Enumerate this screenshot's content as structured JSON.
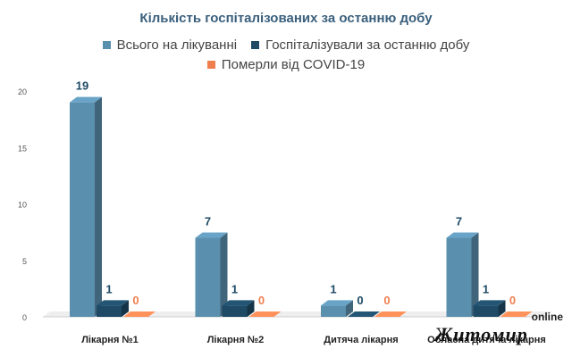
{
  "chart_data": {
    "type": "bar",
    "title": "Кількість госпіталізованих за останню добу",
    "categories": [
      "Лікарня №1",
      "Лікарня №2",
      "Дитяча лікарня",
      "Обласна дитяча лікарня"
    ],
    "series": [
      {
        "name": "Всього на лікуванні",
        "values": [
          19,
          7,
          1,
          7
        ],
        "color": "#5b8fae"
      },
      {
        "name": "Госпіталізували за останню добу",
        "values": [
          1,
          1,
          0,
          1
        ],
        "color": "#1e4a66"
      },
      {
        "name": "Померли від COVID-19",
        "values": [
          0,
          0,
          0,
          0
        ],
        "color": "#f07f4f"
      }
    ],
    "ylim": [
      0,
      20
    ],
    "yticks": [
      0,
      5,
      10,
      15,
      20
    ],
    "legend_position": "top",
    "grid": false
  },
  "watermark": {
    "online": "online",
    "name": "Житомир"
  }
}
